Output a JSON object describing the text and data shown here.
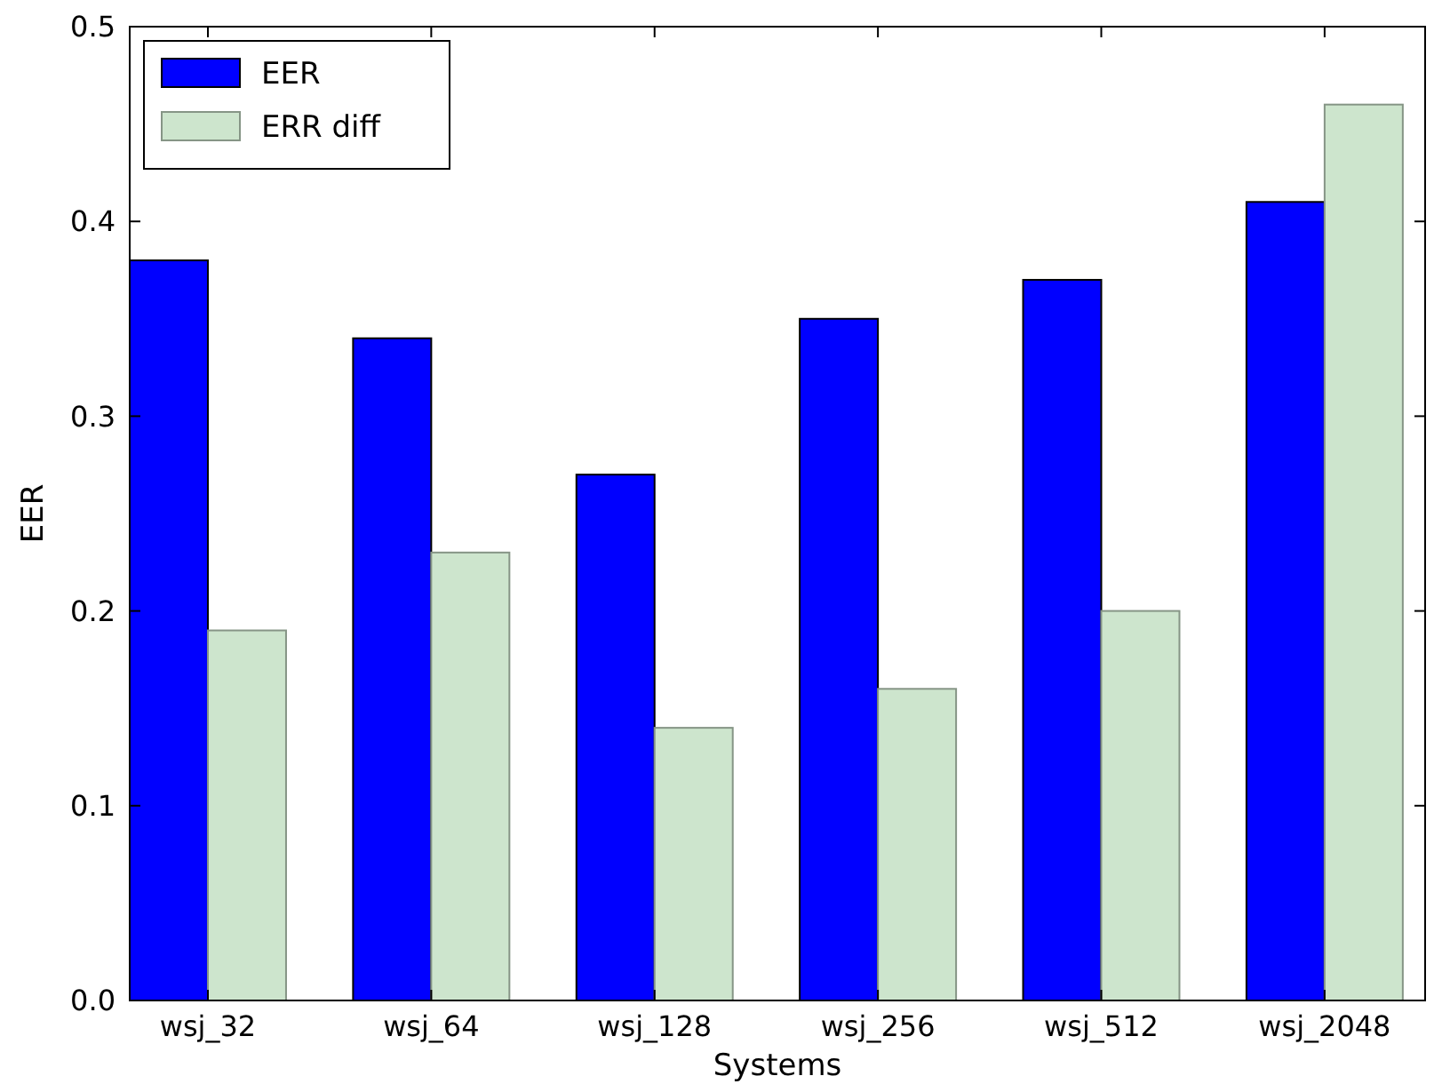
{
  "chart_data": {
    "type": "bar",
    "xlabel": "Systems",
    "ylabel": "EER",
    "categories": [
      "wsj_32",
      "wsj_64",
      "wsj_128",
      "wsj_256",
      "wsj_512",
      "wsj_2048"
    ],
    "series": [
      {
        "name": "EER",
        "color": "#0000ff",
        "values": [
          0.38,
          0.34,
          0.27,
          0.35,
          0.37,
          0.41
        ]
      },
      {
        "name": "ERR diff",
        "color": "#cde5cd",
        "values": [
          0.19,
          0.23,
          0.14,
          0.16,
          0.2,
          0.46
        ]
      }
    ],
    "ylim": [
      0,
      0.5
    ],
    "yticks": [
      {
        "value": 0,
        "label": "0.0"
      },
      0.1,
      0.2,
      0.3,
      0.4,
      0.5
    ],
    "grid": false,
    "legend": "top left"
  }
}
